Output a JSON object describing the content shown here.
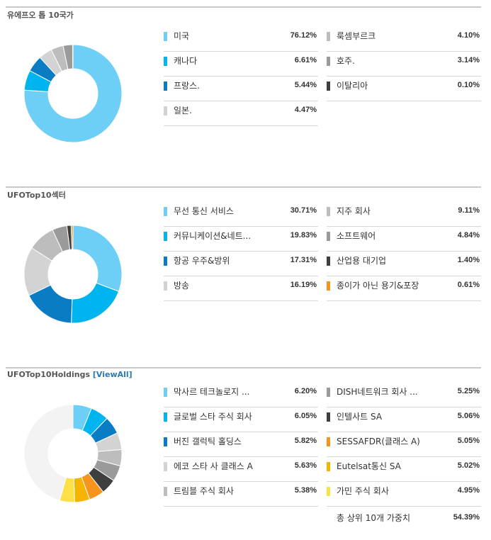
{
  "sections": [
    {
      "title": "유에프오 톱 10국가",
      "left": [
        {
          "label": "미국",
          "value": "76.12%",
          "color": "#6dcff6"
        },
        {
          "label": "캐나다",
          "value": "6.61%",
          "color": "#00b4ef"
        },
        {
          "label": "프랑스.",
          "value": "5.44%",
          "color": "#0a7cc4"
        },
        {
          "label": "일본.",
          "value": "4.47%",
          "color": "#d3d3d3"
        }
      ],
      "right": [
        {
          "label": "룩셈부르크",
          "value": "4.10%",
          "color": "#bdbdbd"
        },
        {
          "label": "호주.",
          "value": "3.14%",
          "color": "#9a9a9a"
        },
        {
          "label": "이탈리아",
          "value": "0.10%",
          "color": "#3f3f3f"
        }
      ]
    },
    {
      "title": "UFOTop10섹터",
      "left": [
        {
          "label": "무선 통신 서비스",
          "value": "30.71%",
          "color": "#6dcff6"
        },
        {
          "label": "커뮤니케이션&네트...",
          "value": "19.83%",
          "color": "#00b4ef"
        },
        {
          "label": "항공 우주&방위",
          "value": "17.31%",
          "color": "#0a7cc4"
        },
        {
          "label": "방송",
          "value": "16.19%",
          "color": "#d3d3d3"
        }
      ],
      "right": [
        {
          "label": "지주 회사",
          "value": "9.11%",
          "color": "#bdbdbd"
        },
        {
          "label": "소프트웨어",
          "value": "4.84%",
          "color": "#9a9a9a"
        },
        {
          "label": "산업용 대기업",
          "value": "1.40%",
          "color": "#3f3f3f"
        },
        {
          "label": "종이가 아닌 용기&포장",
          "value": "0.61%",
          "color": "#f7941d"
        }
      ]
    },
    {
      "title": "UFOTop10Holdings",
      "title_link": "[ViewAll]",
      "left": [
        {
          "label": "막사르 테크놀로지 ...",
          "value": "6.20%",
          "color": "#6dcff6"
        },
        {
          "label": "글로벌 스타 주식 회사",
          "value": "6.05%",
          "color": "#00b4ef"
        },
        {
          "label": "버진 갤럭틱 홀딩스",
          "value": "5.82%",
          "color": "#0a7cc4"
        },
        {
          "label": "에코 스타 사 클래스 A",
          "value": "5.63%",
          "color": "#d3d3d3"
        },
        {
          "label": "트림블 주식 회사",
          "value": "5.38%",
          "color": "#bdbdbd"
        }
      ],
      "right": [
        {
          "label": "DISH네트워크 회사 ...",
          "value": "5.25%",
          "color": "#9a9a9a"
        },
        {
          "label": "인텔사트 SA",
          "value": "5.06%",
          "color": "#3f3f3f"
        },
        {
          "label": "SESSAFDR(클래스 A)",
          "value": "5.05%",
          "color": "#f7941d"
        },
        {
          "label": "Eutelsat통신 SA",
          "value": "5.02%",
          "color": "#f5b400"
        },
        {
          "label": "가민 주식 회사",
          "value": "4.95%",
          "color": "#fde047"
        }
      ],
      "total": {
        "label": "총 상위 10개 가중치",
        "value": "54.39%"
      },
      "remainder_color": "#f3f3f3"
    }
  ],
  "chart_data": [
    {
      "type": "pie",
      "title": "유에프오 톱 10국가",
      "categories": [
        "미국",
        "캐나다",
        "프랑스.",
        "일본.",
        "룩셈부르크",
        "호주.",
        "이탈리아"
      ],
      "values": [
        76.12,
        6.61,
        5.44,
        4.47,
        4.1,
        3.14,
        0.1
      ]
    },
    {
      "type": "pie",
      "title": "UFOTop10섹터",
      "categories": [
        "무선 통신 서비스",
        "커뮤니케이션&네트...",
        "항공 우주&방위",
        "방송",
        "지주 회사",
        "소프트웨어",
        "산업용 대기업",
        "종이가 아닌 용기&포장"
      ],
      "values": [
        30.71,
        19.83,
        17.31,
        16.19,
        9.11,
        4.84,
        1.4,
        0.61
      ]
    },
    {
      "type": "pie",
      "title": "UFOTop10Holdings",
      "categories": [
        "막사르 테크놀로지 ...",
        "글로벌 스타 주식 회사",
        "버진 갤럭틱 홀딩스",
        "에코 스타 사 클래스 A",
        "트림블 주식 회사",
        "DISH네트워크 회사 ...",
        "인텔사트 SA",
        "SESSAFDR(클래스 A)",
        "Eutelsat통신 SA",
        "가민 주식 회사"
      ],
      "values": [
        6.2,
        6.05,
        5.82,
        5.63,
        5.38,
        5.25,
        5.06,
        5.05,
        5.02,
        4.95
      ]
    }
  ]
}
